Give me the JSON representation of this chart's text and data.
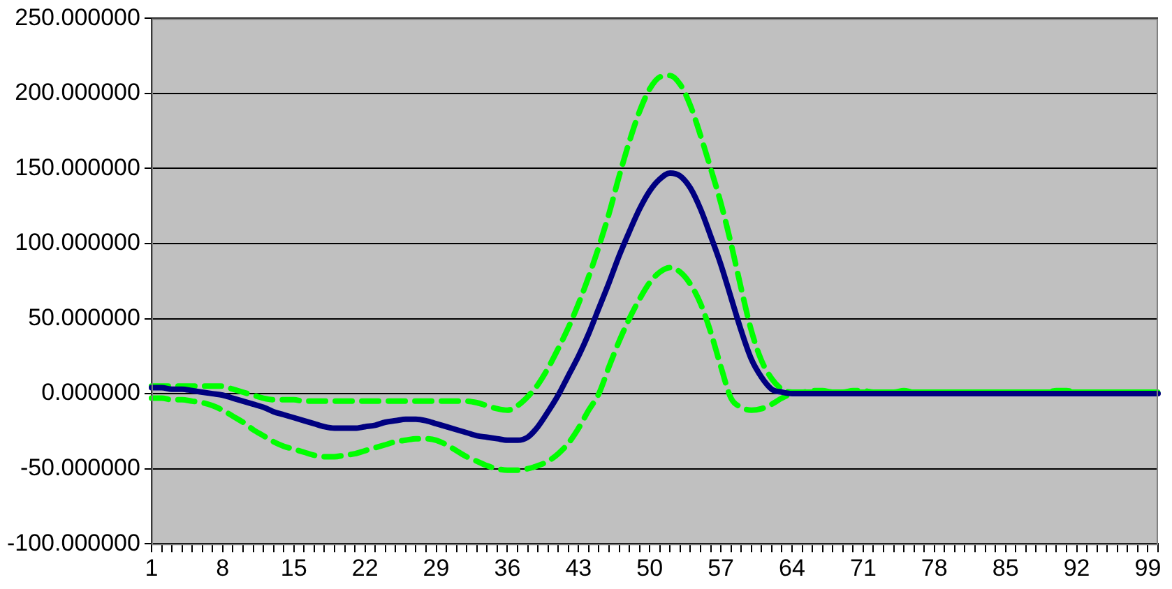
{
  "chart_data": {
    "type": "line",
    "categories": [
      "1",
      null,
      null,
      null,
      null,
      null,
      null,
      "8",
      null,
      null,
      null,
      null,
      null,
      null,
      "15",
      null,
      null,
      null,
      null,
      null,
      null,
      "22",
      null,
      null,
      null,
      null,
      null,
      null,
      "29",
      null,
      null,
      null,
      null,
      null,
      null,
      "36",
      null,
      null,
      null,
      null,
      null,
      null,
      "43",
      null,
      null,
      null,
      null,
      null,
      null,
      "50",
      null,
      null,
      null,
      null,
      null,
      null,
      "57",
      null,
      null,
      null,
      null,
      null,
      null,
      "64",
      null,
      null,
      null,
      null,
      null,
      null,
      "71",
      null,
      null,
      null,
      null,
      null,
      null,
      "78",
      null,
      null,
      null,
      null,
      null,
      null,
      "85",
      null,
      null,
      null,
      null,
      null,
      null,
      "92",
      null,
      null,
      null,
      null,
      null,
      null,
      "99",
      null
    ],
    "series": [
      {
        "color": "#000080",
        "line_style": "solid",
        "values": [
          4,
          4,
          3,
          3,
          2,
          1,
          0,
          -1,
          -3,
          -5,
          -7,
          -9,
          -12,
          -14,
          -16,
          -18,
          -20,
          -22,
          -23,
          -23,
          -23,
          -22,
          -21,
          -19,
          -18,
          -17,
          -17,
          -18,
          -20,
          -22,
          -24,
          -26,
          -28,
          -29,
          -30,
          -31,
          -31,
          -29,
          -22,
          -12,
          -1,
          12,
          25,
          40,
          57,
          74,
          92,
          108,
          123,
          135,
          143,
          147,
          145,
          137,
          123,
          105,
          86,
          64,
          42,
          23,
          11,
          3,
          1,
          0,
          0,
          0,
          0,
          0,
          0,
          0,
          0,
          0,
          0,
          0,
          0,
          0,
          0,
          0,
          0,
          0,
          0,
          0,
          0,
          0,
          0,
          0,
          0,
          0,
          0,
          0,
          0,
          0,
          0,
          0,
          0,
          0,
          0,
          0,
          0,
          0
        ]
      },
      {
        "color": "#00ff00",
        "line_style": "dashed",
        "values": [
          5,
          5,
          5,
          5,
          5,
          5,
          5,
          5,
          3,
          1,
          -1,
          -3,
          -4,
          -4,
          -4,
          -5,
          -5,
          -5,
          -5,
          -5,
          -5,
          -5,
          -5,
          -5,
          -5,
          -5,
          -5,
          -5,
          -5,
          -5,
          -5,
          -5,
          -6,
          -8,
          -10,
          -11,
          -8,
          -2,
          6,
          17,
          30,
          44,
          60,
          78,
          98,
          120,
          145,
          168,
          188,
          203,
          211,
          212,
          206,
          192,
          172,
          150,
          127,
          100,
          70,
          42,
          22,
          10,
          3,
          1,
          1,
          2,
          2,
          1,
          1,
          2,
          2,
          1,
          1,
          1,
          2,
          1,
          1,
          1,
          1,
          1,
          1,
          1,
          1,
          1,
          1,
          1,
          1,
          1,
          1,
          2,
          2,
          1,
          1,
          1,
          1,
          1,
          1,
          1,
          1,
          1
        ]
      },
      {
        "color": "#00ff00",
        "line_style": "dashed",
        "values": [
          -3,
          -3,
          -4,
          -4,
          -5,
          -6,
          -8,
          -11,
          -15,
          -19,
          -24,
          -28,
          -32,
          -35,
          -37,
          -39,
          -41,
          -42,
          -42,
          -41,
          -40,
          -38,
          -36,
          -34,
          -32,
          -31,
          -30,
          -30,
          -31,
          -34,
          -38,
          -42,
          -45,
          -48,
          -50,
          -51,
          -51,
          -50,
          -48,
          -45,
          -40,
          -33,
          -23,
          -11,
          0,
          18,
          35,
          50,
          63,
          74,
          81,
          84,
          81,
          73,
          60,
          41,
          18,
          -3,
          -9,
          -11,
          -10,
          -7,
          -3,
          0,
          1,
          1,
          1,
          1,
          1,
          1,
          1,
          1,
          1,
          1,
          1,
          1,
          1,
          1,
          1,
          1,
          1,
          1,
          1,
          1,
          1,
          1,
          1,
          1,
          1,
          1,
          1,
          1,
          1,
          1,
          1,
          1,
          1,
          1,
          1,
          1
        ]
      }
    ],
    "ylim": [
      -100,
      250
    ],
    "yticks": [
      {
        "value": -100,
        "label": "-100.000000"
      },
      {
        "value": -50,
        "label": "-50.000000"
      },
      {
        "value": 0,
        "label": "0.000000"
      },
      {
        "value": 50,
        "label": "50.000000"
      },
      {
        "value": 100,
        "label": "100.000000"
      },
      {
        "value": 150,
        "label": "150.000000"
      },
      {
        "value": 200,
        "label": "200.000000"
      },
      {
        "value": 250,
        "label": "250.000000"
      }
    ],
    "grid": "y",
    "marker": "none",
    "legend": false
  }
}
